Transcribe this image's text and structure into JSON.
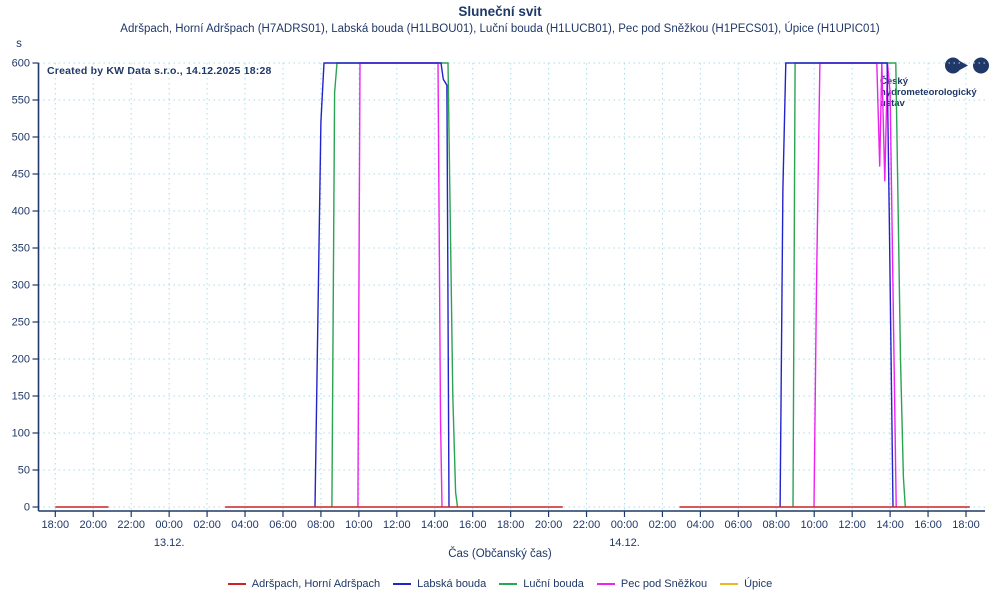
{
  "page": {
    "title": "Sluneční svit",
    "subtitle": "Adršpach, Horní Adršpach (H7ADRS01), Labská bouda (H1LBOU01), Luční bouda (H1LUCB01), Pec pod Sněžkou (H1PECS01), Úpice (H1UPIC01)"
  },
  "watermark": "Created by KW Data s.r.o., 14.12.2025 18:28",
  "logo": {
    "lines": [
      "Český",
      "hydrometeorologický",
      "ústav"
    ],
    "icon": "chmi-logo-circles"
  },
  "chart_data": {
    "type": "line",
    "title": "Sluneční svit",
    "unit_label": "s",
    "xlabel": "Čas (Občanský čas)",
    "ylabel": "s",
    "ylim": [
      0,
      600
    ],
    "y_ticks": [
      0,
      50,
      100,
      150,
      200,
      250,
      300,
      350,
      400,
      450,
      500,
      550,
      600
    ],
    "x_hours_range": [
      -0.9,
      49
    ],
    "grid": true,
    "legend_position": "bottom",
    "x_ticks": [
      {
        "t": 0,
        "label": "18:00"
      },
      {
        "t": 2,
        "label": "20:00"
      },
      {
        "t": 4,
        "label": "22:00"
      },
      {
        "t": 6,
        "label": "00:00"
      },
      {
        "t": 8,
        "label": "02:00"
      },
      {
        "t": 10,
        "label": "04:00"
      },
      {
        "t": 12,
        "label": "06:00"
      },
      {
        "t": 14,
        "label": "08:00"
      },
      {
        "t": 16,
        "label": "10:00"
      },
      {
        "t": 18,
        "label": "12:00"
      },
      {
        "t": 20,
        "label": "14:00"
      },
      {
        "t": 22,
        "label": "16:00"
      },
      {
        "t": 24,
        "label": "18:00"
      },
      {
        "t": 26,
        "label": "20:00"
      },
      {
        "t": 28,
        "label": "22:00"
      },
      {
        "t": 30,
        "label": "00:00"
      },
      {
        "t": 32,
        "label": "02:00"
      },
      {
        "t": 34,
        "label": "04:00"
      },
      {
        "t": 36,
        "label": "06:00"
      },
      {
        "t": 38,
        "label": "08:00"
      },
      {
        "t": 40,
        "label": "10:00"
      },
      {
        "t": 42,
        "label": "12:00"
      },
      {
        "t": 44,
        "label": "14:00"
      },
      {
        "t": 46,
        "label": "16:00"
      },
      {
        "t": 48,
        "label": "18:00"
      }
    ],
    "day_labels": [
      {
        "t": 6,
        "label": "13.12."
      },
      {
        "t": 30,
        "label": "14.12."
      }
    ],
    "colors": {
      "grid": "#aadcec",
      "axis": "#1f3868",
      "text": "#1f3868",
      "background": "#ffffff"
    },
    "series": [
      {
        "name": "Adršpach, Horní Adršpach",
        "station_id": "H7ADRS01",
        "color": "#cc2222",
        "segments": [
          [
            [
              0,
              0
            ],
            [
              2.8,
              0
            ]
          ],
          [
            [
              8.95,
              0
            ],
            [
              26.75,
              0
            ]
          ],
          [
            [
              32.9,
              0
            ],
            [
              48.2,
              0
            ]
          ]
        ]
      },
      {
        "name": "Labská bouda",
        "station_id": "H1LBOU01",
        "color": "#2323cb",
        "segments": [
          [
            [
              13.69,
              0
            ],
            [
              14.0,
              520
            ],
            [
              14.16,
              600
            ],
            [
              20.33,
              600
            ],
            [
              20.45,
              578
            ],
            [
              20.64,
              570
            ],
            [
              20.75,
              0
            ]
          ],
          [
            [
              38.2,
              0
            ],
            [
              38.35,
              430
            ],
            [
              38.5,
              600
            ],
            [
              43.84,
              600
            ],
            [
              43.95,
              400
            ],
            [
              44.15,
              0
            ]
          ]
        ]
      },
      {
        "name": "Luční bouda",
        "station_id": "H1LUCB01",
        "color": "#2aa353",
        "segments": [
          [
            [
              14.58,
              0
            ],
            [
              14.72,
              560
            ],
            [
              14.85,
              600
            ],
            [
              20.7,
              600
            ],
            [
              20.95,
              150
            ],
            [
              21.1,
              20
            ],
            [
              21.2,
              0
            ]
          ],
          [
            [
              38.88,
              0
            ],
            [
              38.99,
              600
            ],
            [
              44.3,
              600
            ],
            [
              44.55,
              200
            ],
            [
              44.7,
              40
            ],
            [
              44.8,
              0
            ]
          ]
        ]
      },
      {
        "name": "Pec pod Sněžkou",
        "station_id": "H1PECS01",
        "color": "#ee22ee",
        "segments": [
          [
            [
              15.95,
              0
            ],
            [
              16.06,
              600
            ],
            [
              20.17,
              600
            ],
            [
              20.3,
              120
            ],
            [
              20.38,
              0
            ]
          ],
          [
            [
              39.99,
              0
            ],
            [
              40.12,
              300
            ],
            [
              40.3,
              600
            ],
            [
              43.3,
              600
            ],
            [
              43.45,
              460
            ],
            [
              43.56,
              600
            ],
            [
              43.72,
              440
            ],
            [
              43.86,
              600
            ],
            [
              44.0,
              560
            ],
            [
              44.32,
              0
            ]
          ]
        ]
      },
      {
        "name": "Úpice",
        "station_id": "H1UPIC01",
        "color": "#eab626",
        "segments": []
      }
    ]
  }
}
